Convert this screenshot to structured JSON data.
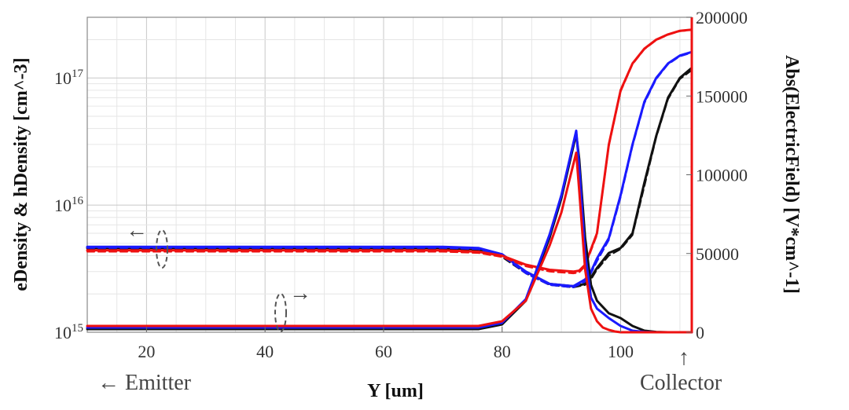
{
  "chart_data": {
    "type": "line",
    "title": "",
    "xlabel": "Y [um]",
    "ylabel_left": "eDensity & hDensity [cm^-3]",
    "ylabel_right": "Abs(ElectricField) [V*cm^-1]",
    "xlim": [
      10,
      112
    ],
    "ylim_left": [
      1000000000000000.0,
      3e+17
    ],
    "yscale_left": "log",
    "ylim_right": [
      0,
      200000
    ],
    "xticks": [
      "20",
      "40",
      "60",
      "80",
      "100"
    ],
    "xtick_values": [
      20,
      40,
      60,
      80,
      100
    ],
    "yticks_left": [
      {
        "value": 1000000000000000.0,
        "base": "10",
        "exp": "15"
      },
      {
        "value": 1e+16,
        "base": "10",
        "exp": "16"
      },
      {
        "value": 1e+17,
        "base": "10",
        "exp": "17"
      }
    ],
    "yticks_right": [
      "0",
      "50000",
      "100000",
      "150000",
      "200000"
    ],
    "ytick_right_values": [
      0,
      50000,
      100000,
      150000,
      200000
    ],
    "grid": true,
    "annotations": {
      "emitter": "← Emitter",
      "collector": "Collector",
      "left_arrow": "←",
      "right_arrow": "→",
      "up_arrow": "↑"
    },
    "series": [
      {
        "color": "#111111",
        "axis": "left",
        "dash": "solid",
        "x": [
          10,
          70,
          76,
          80,
          84,
          88,
          92,
          94,
          95,
          96,
          98,
          100,
          102,
          104,
          106,
          108,
          110,
          112
        ],
        "y": [
          4600000000000000.0,
          4600000000000000.0,
          4500000000000000.0,
          4100000000000000.0,
          3000000000000000.0,
          2400000000000000.0,
          2300000000000000.0,
          2400000000000000.0,
          2700000000000000.0,
          3200000000000000.0,
          4200000000000000.0,
          4600000000000000.0,
          6000000000000000.0,
          1.5e+16,
          3.5e+16,
          7e+16,
          1e+17,
          1.2e+17
        ]
      },
      {
        "color": "#111111",
        "axis": "left",
        "dash": "dashed",
        "x": [
          10,
          70,
          76,
          80,
          84,
          88,
          92,
          94,
          95,
          96,
          98,
          100,
          102,
          104,
          106,
          108,
          110,
          112
        ],
        "y": [
          4500000000000000.0,
          4500000000000000.0,
          4400000000000000.0,
          3900000000000000.0,
          2900000000000000.0,
          2350000000000000.0,
          2250000000000000.0,
          2350000000000000.0,
          2600000000000000.0,
          3100000000000000.0,
          4000000000000000.0,
          4500000000000000.0,
          5800000000000000.0,
          1.4e+16,
          3.4e+16,
          6.8e+16,
          9.8e+16,
          1.15e+17
        ]
      },
      {
        "color": "#1a1aff",
        "axis": "left",
        "dash": "solid",
        "x": [
          10,
          70,
          76,
          80,
          84,
          88,
          92,
          94,
          95,
          96,
          98,
          100,
          102,
          104,
          106,
          108,
          110,
          112
        ],
        "y": [
          4700000000000000.0,
          4700000000000000.0,
          4600000000000000.0,
          4100000000000000.0,
          3000000000000000.0,
          2400000000000000.0,
          2300000000000000.0,
          2600000000000000.0,
          3000000000000000.0,
          3800000000000000.0,
          5500000000000000.0,
          1.2e+16,
          3e+16,
          6.5e+16,
          1e+17,
          1.3e+17,
          1.5e+17,
          1.6e+17
        ]
      },
      {
        "color": "#1a1aff",
        "axis": "left",
        "dash": "dashed",
        "x": [
          10,
          70,
          76,
          80,
          84,
          88,
          92,
          94,
          95,
          96,
          98,
          100,
          102,
          104,
          106,
          108,
          110,
          112
        ],
        "y": [
          4600000000000000.0,
          4600000000000000.0,
          4500000000000000.0,
          4000000000000000.0,
          2900000000000000.0,
          2350000000000000.0,
          2250000000000000.0,
          2500000000000000.0,
          2900000000000000.0,
          3600000000000000.0,
          5300000000000000.0,
          1.15e+16,
          2.9e+16,
          6.3e+16,
          9.8e+16,
          1.28e+17,
          1.48e+17,
          1.58e+17
        ]
      },
      {
        "color": "#ee1111",
        "axis": "left",
        "dash": "solid",
        "x": [
          10,
          70,
          76,
          80,
          84,
          88,
          92,
          93,
          94,
          96,
          98,
          100,
          102,
          104,
          106,
          108,
          110,
          112
        ],
        "y": [
          4400000000000000.0,
          4400000000000000.0,
          4300000000000000.0,
          4000000000000000.0,
          3400000000000000.0,
          3100000000000000.0,
          3000000000000000.0,
          3050000000000000.0,
          3400000000000000.0,
          6000000000000000.0,
          3e+16,
          8e+16,
          1.3e+17,
          1.7e+17,
          2e+17,
          2.2e+17,
          2.35e+17,
          2.4e+17
        ]
      },
      {
        "color": "#ee1111",
        "axis": "left",
        "dash": "dashed",
        "x": [
          10,
          70,
          76,
          80,
          84,
          88,
          92,
          93,
          94,
          96,
          98,
          100,
          102,
          104,
          106,
          108,
          110,
          112
        ],
        "y": [
          4300000000000000.0,
          4300000000000000.0,
          4200000000000000.0,
          3900000000000000.0,
          3300000000000000.0,
          3000000000000000.0,
          2900000000000000.0,
          2950000000000000.0,
          3300000000000000.0,
          5800000000000000.0,
          2.9e+16,
          7.8e+16,
          1.28e+17,
          1.68e+17,
          1.98e+17,
          2.18e+17,
          2.33e+17,
          2.38e+17
        ]
      },
      {
        "color": "#111111",
        "axis": "right",
        "dash": "solid",
        "x": [
          10,
          76,
          80,
          84,
          88,
          90,
          92.5,
          93,
          94,
          95,
          96,
          98,
          100,
          102,
          104,
          106,
          108,
          110,
          112
        ],
        "y": [
          2000,
          2000,
          5000,
          20000,
          60000,
          85000,
          126000,
          110000,
          60000,
          30000,
          20000,
          12000,
          9000,
          4000,
          1000,
          200,
          0,
          0,
          0
        ]
      },
      {
        "color": "#1a1aff",
        "axis": "right",
        "dash": "solid",
        "x": [
          10,
          76,
          80,
          84,
          88,
          90,
          92.5,
          93,
          94,
          95,
          96,
          98,
          100,
          102,
          104,
          106,
          108,
          110,
          112
        ],
        "y": [
          3000,
          3000,
          6000,
          21000,
          62000,
          87000,
          128000,
          105000,
          50000,
          22000,
          15000,
          9000,
          4000,
          1000,
          200,
          0,
          0,
          0,
          0
        ]
      },
      {
        "color": "#ee1111",
        "axis": "right",
        "dash": "solid",
        "x": [
          10,
          76,
          80,
          84,
          88,
          90,
          92.5,
          93,
          94,
          95,
          96,
          97,
          98,
          99,
          100,
          102,
          104,
          106,
          108,
          110,
          112
        ],
        "y": [
          4000,
          4000,
          7000,
          20000,
          55000,
          76000,
          114000,
          90000,
          40000,
          15000,
          7000,
          3000,
          1500,
          500,
          0,
          0,
          0,
          0,
          0,
          0,
          0
        ]
      }
    ]
  }
}
